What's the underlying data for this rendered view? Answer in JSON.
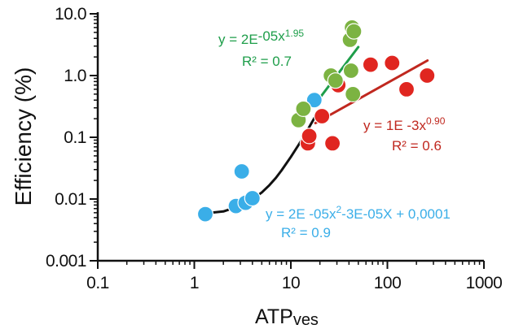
{
  "chart_data": {
    "type": "scatter",
    "title": "",
    "xlabel": "ATP",
    "xlabel_sub": "ves",
    "ylabel": "Efficiency (%)",
    "x_scale": "log",
    "y_scale": "log",
    "xlim": [
      0.1,
      1000
    ],
    "ylim": [
      0.001,
      10
    ],
    "grid": false,
    "x_ticks": [
      "0.1",
      "1",
      "10",
      "100",
      "1000"
    ],
    "y_ticks": [
      "0.001",
      "0.01",
      "0.1",
      "1.0",
      "10.0"
    ],
    "series": [
      {
        "color": "#3aaee8",
        "points": [
          [
            1.3,
            0.0057
          ],
          [
            2.7,
            0.0077
          ],
          [
            3.1,
            0.028
          ],
          [
            3.4,
            0.0087
          ],
          [
            4.0,
            0.0103
          ],
          [
            17.5,
            0.4
          ]
        ],
        "fit": {
          "kind": "polynomial",
          "points": [
            [
              1.2,
              0.0058
            ],
            [
              2,
              0.0063
            ],
            [
              3,
              0.0078
            ],
            [
              4,
              0.0099
            ],
            [
              5,
              0.0128
            ],
            [
              6,
              0.0168
            ],
            [
              7,
              0.022
            ],
            [
              8,
              0.029
            ],
            [
              10,
              0.048
            ],
            [
              12,
              0.075
            ],
            [
              14,
              0.11
            ],
            [
              16,
              0.16
            ],
            [
              18,
              0.22
            ],
            [
              19,
              0.26
            ]
          ],
          "color": "#111111",
          "equation": "y = 2E -05x",
          "equation_sup": "2",
          "equation_tail": "-3E-05X + 0,0001",
          "r2": "R² = 0.9"
        }
      },
      {
        "color": "#e02620",
        "points": [
          [
            15,
            0.08
          ],
          [
            15.5,
            0.105
          ],
          [
            21,
            0.22
          ],
          [
            27,
            0.08
          ],
          [
            31,
            0.7
          ],
          [
            67,
            1.5
          ],
          [
            112,
            1.6
          ],
          [
            158,
            0.6
          ],
          [
            258,
            1.0
          ]
        ],
        "fit": {
          "kind": "power",
          "points": [
            [
              18,
              0.17
            ],
            [
              260,
              1.75
            ]
          ],
          "color": "#c0281f",
          "equation": "y = 1E -3x",
          "equation_sup": "0.90",
          "r2": "R² = 0.6"
        }
      },
      {
        "color": "#7cb342",
        "points": [
          [
            12,
            0.19
          ],
          [
            13.5,
            0.29
          ],
          [
            26,
            1.0
          ],
          [
            29,
            0.83
          ],
          [
            41,
            3.8
          ],
          [
            43,
            6.0
          ],
          [
            45,
            5.2
          ],
          [
            42,
            1.2
          ],
          [
            44,
            0.5
          ]
        ],
        "fit": {
          "kind": "power",
          "points": [
            [
              18,
              0.35
            ],
            [
              50,
              2.9
            ]
          ],
          "color": "#1e9e4a",
          "equation": "y = 2E",
          "equation_mid": "-05x",
          "equation_sup": "1.95",
          "r2": "R² = 0.7"
        }
      }
    ]
  }
}
